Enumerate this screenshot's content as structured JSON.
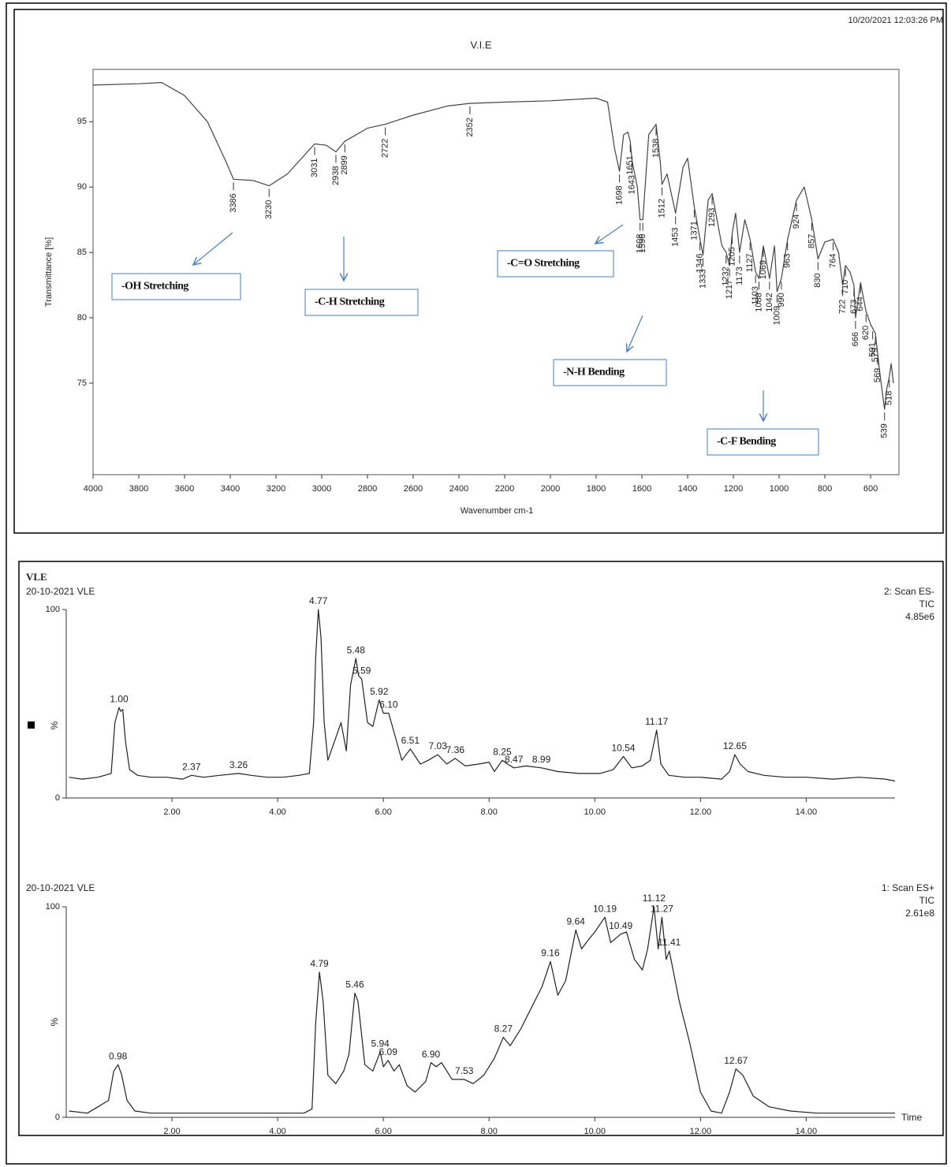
{
  "chart_data": [
    {
      "type": "line",
      "title": "V.I.E",
      "timestamp": "10/20/2021  12:03:26 PM",
      "x_label": "Wavenumber cm-1",
      "y_label": "Transmittance [%]",
      "x": [
        4000,
        3800,
        3700,
        3600,
        3500,
        3420,
        3386,
        3300,
        3230,
        3150,
        3031,
        2980,
        2938,
        2899,
        2800,
        2722,
        2600,
        2450,
        2352,
        2200,
        2000,
        1800,
        1750,
        1720,
        1698,
        1680,
        1661,
        1651,
        1643,
        1620,
        1608,
        1596,
        1570,
        1538,
        1520,
        1512,
        1490,
        1453,
        1420,
        1400,
        1371,
        1346,
        1333,
        1310,
        1293,
        1250,
        1232,
        1217,
        1205,
        1190,
        1173,
        1150,
        1127,
        1103,
        1088,
        1069,
        1042,
        1020,
        1009,
        990,
        963,
        924,
        890,
        870,
        857,
        830,
        800,
        764,
        740,
        722,
        710,
        690,
        673,
        666,
        644,
        620,
        600,
        579,
        561,
        539,
        530,
        518,
        510,
        500
      ],
      "series": [
        {
          "color": "#444444",
          "values": [
            97.8,
            97.9,
            98.0,
            97.0,
            95.0,
            92.0,
            90.6,
            90.5,
            90.1,
            91.0,
            93.3,
            93.2,
            92.7,
            93.5,
            94.5,
            94.8,
            95.5,
            96.2,
            96.4,
            96.5,
            96.6,
            96.8,
            96.5,
            93.0,
            91.2,
            94.0,
            94.2,
            93.5,
            92.0,
            90.0,
            87.5,
            87.5,
            94.0,
            94.8,
            92.0,
            90.2,
            91.0,
            88.0,
            91.5,
            92.2,
            88.5,
            86.0,
            84.8,
            89.0,
            89.5,
            85.5,
            85.0,
            84.0,
            86.5,
            88.0,
            85.0,
            87.5,
            86.0,
            83.5,
            83.0,
            85.5,
            83.0,
            85.5,
            82.0,
            83.0,
            86.0,
            89.0,
            90.0,
            88.5,
            87.5,
            84.5,
            85.8,
            86.0,
            85.0,
            82.5,
            84.0,
            83.5,
            82.5,
            80.0,
            82.7,
            80.5,
            79.5,
            78.8,
            76.0,
            73.0,
            74.5,
            75.5,
            76.5,
            75.0
          ]
        }
      ],
      "xlim": [
        4000,
        476
      ],
      "ylim": [
        68,
        99
      ],
      "xticks": [
        4000,
        3800,
        3600,
        3400,
        3200,
        3000,
        2800,
        2600,
        2400,
        2200,
        2000,
        1800,
        1600,
        1400,
        1200,
        1000,
        800,
        600
      ],
      "yticks": [
        75,
        80,
        85,
        90,
        95
      ],
      "peaks": [
        3386,
        3230,
        3031,
        2938,
        2899,
        2722,
        2352,
        1698,
        1651,
        1643,
        1608,
        1596,
        1538,
        1512,
        1453,
        1371,
        1346,
        1333,
        1293,
        1232,
        1217,
        1205,
        1173,
        1127,
        1103,
        1088,
        1069,
        1042,
        1009,
        990,
        963,
        924,
        857,
        830,
        764,
        722,
        710,
        673,
        666,
        644,
        620,
        591,
        579,
        569,
        539,
        518
      ],
      "annotations": [
        "-OH Stretching",
        "-C-H Stretching",
        "-C=O Stretching",
        "-N-H Bending",
        "-C-F Bending"
      ]
    },
    {
      "type": "line",
      "sample": "VLE",
      "subtitle": "20-10-2021 VLE",
      "scan": "2: Scan ES-",
      "detection": "TIC",
      "intensity": "4.85e6",
      "y_label": "%",
      "x": [
        0.05,
        0.3,
        0.6,
        0.85,
        0.92,
        0.97,
        1.0,
        1.03,
        1.07,
        1.12,
        1.2,
        1.35,
        1.6,
        1.9,
        2.2,
        2.37,
        2.6,
        2.9,
        3.26,
        3.5,
        3.8,
        4.1,
        4.4,
        4.6,
        4.68,
        4.72,
        4.77,
        4.82,
        4.88,
        4.95,
        5.05,
        5.2,
        5.3,
        5.38,
        5.48,
        5.53,
        5.59,
        5.7,
        5.8,
        5.92,
        6.0,
        6.1,
        6.2,
        6.35,
        6.51,
        6.7,
        6.85,
        7.03,
        7.2,
        7.36,
        7.55,
        7.8,
        8.0,
        8.1,
        8.25,
        8.35,
        8.47,
        8.7,
        8.99,
        9.3,
        9.7,
        10.1,
        10.35,
        10.54,
        10.7,
        10.9,
        11.05,
        11.17,
        11.25,
        11.4,
        11.7,
        12.0,
        12.4,
        12.55,
        12.65,
        12.75,
        12.9,
        13.2,
        13.6,
        14.0,
        14.5,
        15.0,
        15.5,
        15.68
      ],
      "series": [
        {
          "color": "#222222",
          "values": [
            11,
            10,
            11,
            13,
            40,
            45,
            48,
            46,
            47,
            30,
            15,
            12,
            11,
            11,
            10,
            12,
            11,
            12,
            13,
            12,
            11,
            11,
            12,
            13,
            40,
            75,
            100,
            85,
            40,
            20,
            28,
            40,
            25,
            60,
            74,
            65,
            63,
            40,
            38,
            52,
            45,
            45,
            35,
            20,
            26,
            18,
            20,
            23,
            18,
            21,
            17,
            18,
            19,
            14,
            20,
            18,
            16,
            17,
            16,
            14,
            13,
            13,
            15,
            22,
            16,
            17,
            20,
            36,
            18,
            12,
            11,
            11,
            10,
            14,
            23,
            18,
            14,
            12,
            11,
            11,
            10,
            11,
            10,
            9
          ]
        }
      ],
      "xlim": [
        0,
        15.68
      ],
      "ylim": [
        0,
        100
      ],
      "xticks": [
        {
          "value": 2,
          "label": "2.00"
        },
        {
          "value": 4,
          "label": "4.00"
        },
        {
          "value": 6,
          "label": "6.00"
        },
        {
          "value": 8,
          "label": "8.00"
        },
        {
          "value": 10,
          "label": "10.00"
        },
        {
          "value": 12,
          "label": "12.00"
        },
        {
          "value": 14,
          "label": "14.00"
        }
      ],
      "yticks": [
        0,
        100
      ],
      "peak_labels": [
        {
          "value": 1.0,
          "label": "1.00"
        },
        {
          "value": 2.37,
          "label": "2.37"
        },
        {
          "value": 3.26,
          "label": "3.26"
        },
        {
          "value": 4.77,
          "label": "4.77"
        },
        {
          "value": 5.48,
          "label": "5.48"
        },
        {
          "value": 5.59,
          "label": "5.59"
        },
        {
          "value": 5.92,
          "label": "5.92"
        },
        {
          "value": 6.1,
          "label": "6.10"
        },
        {
          "value": 6.51,
          "label": "6.51"
        },
        {
          "value": 7.03,
          "label": "7.03"
        },
        {
          "value": 7.36,
          "label": "7.36"
        },
        {
          "value": 8.25,
          "label": "8.25"
        },
        {
          "value": 8.47,
          "label": "8.47"
        },
        {
          "value": 8.99,
          "label": "8.99"
        },
        {
          "value": 10.54,
          "label": "10.54"
        },
        {
          "value": 11.17,
          "label": "11.17"
        },
        {
          "value": 12.65,
          "label": "12.65"
        }
      ]
    },
    {
      "type": "line",
      "subtitle": "20-10-2021 VLE",
      "scan": "1: Scan ES+",
      "detection": "TIC",
      "intensity": "2.61e8",
      "y_label": "%",
      "x_label": "Time",
      "x": [
        0.05,
        0.4,
        0.8,
        0.9,
        0.98,
        1.05,
        1.15,
        1.3,
        1.6,
        2.0,
        2.5,
        3.0,
        3.5,
        4.0,
        4.5,
        4.65,
        4.72,
        4.79,
        4.86,
        4.95,
        5.1,
        5.25,
        5.35,
        5.46,
        5.52,
        5.65,
        5.8,
        5.94,
        6.0,
        6.09,
        6.2,
        6.3,
        6.45,
        6.6,
        6.8,
        6.9,
        7.0,
        7.1,
        7.3,
        7.53,
        7.7,
        7.9,
        8.1,
        8.27,
        8.4,
        8.6,
        8.8,
        9.0,
        9.16,
        9.3,
        9.45,
        9.64,
        9.75,
        9.9,
        10.0,
        10.19,
        10.3,
        10.49,
        10.6,
        10.75,
        10.9,
        11.0,
        11.12,
        11.2,
        11.27,
        11.35,
        11.41,
        11.6,
        11.8,
        12.0,
        12.2,
        12.4,
        12.55,
        12.67,
        12.8,
        13.0,
        13.3,
        13.7,
        14.2,
        15.0,
        15.68
      ],
      "series": [
        {
          "color": "#222222",
          "values": [
            3,
            2,
            8,
            22,
            25,
            20,
            8,
            3,
            2,
            2,
            2,
            2,
            2,
            2,
            2,
            4,
            45,
            69,
            55,
            20,
            16,
            22,
            30,
            59,
            55,
            25,
            22,
            31,
            24,
            27,
            22,
            25,
            15,
            12,
            17,
            26,
            24,
            26,
            18,
            18,
            16,
            20,
            28,
            38,
            34,
            42,
            52,
            62,
            74,
            58,
            65,
            89,
            80,
            85,
            88,
            95,
            83,
            87,
            88,
            75,
            70,
            80,
            100,
            80,
            95,
            75,
            79,
            55,
            35,
            12,
            3,
            2,
            12,
            23,
            20,
            10,
            5,
            3,
            2,
            2,
            2
          ]
        }
      ],
      "xlim": [
        0,
        15.68
      ],
      "ylim": [
        0,
        100
      ],
      "xticks": [
        {
          "value": 2,
          "label": "2.00"
        },
        {
          "value": 4,
          "label": "4.00"
        },
        {
          "value": 6,
          "label": "6.00"
        },
        {
          "value": 8,
          "label": "8.00"
        },
        {
          "value": 10,
          "label": "10.00"
        },
        {
          "value": 12,
          "label": "12.00"
        },
        {
          "value": 14,
          "label": "14.00"
        }
      ],
      "yticks": [
        0,
        100
      ],
      "peak_labels": [
        {
          "value": 0.98,
          "label": "0.98"
        },
        {
          "value": 4.79,
          "label": "4.79"
        },
        {
          "value": 5.46,
          "label": "5.46"
        },
        {
          "value": 5.94,
          "label": "5.94"
        },
        {
          "value": 6.09,
          "label": "6.09"
        },
        {
          "value": 6.9,
          "label": "6.90"
        },
        {
          "value": 7.53,
          "label": "7.53"
        },
        {
          "value": 8.27,
          "label": "8.27"
        },
        {
          "value": 9.16,
          "label": "9.16"
        },
        {
          "value": 9.64,
          "label": "9.64"
        },
        {
          "value": 10.19,
          "label": "10.19"
        },
        {
          "value": 10.49,
          "label": "10.49"
        },
        {
          "value": 11.12,
          "label": "11.12"
        },
        {
          "value": 11.27,
          "label": "11.27"
        },
        {
          "value": 11.41,
          "label": "11.41"
        },
        {
          "value": 12.67,
          "label": "12.67"
        }
      ]
    }
  ]
}
